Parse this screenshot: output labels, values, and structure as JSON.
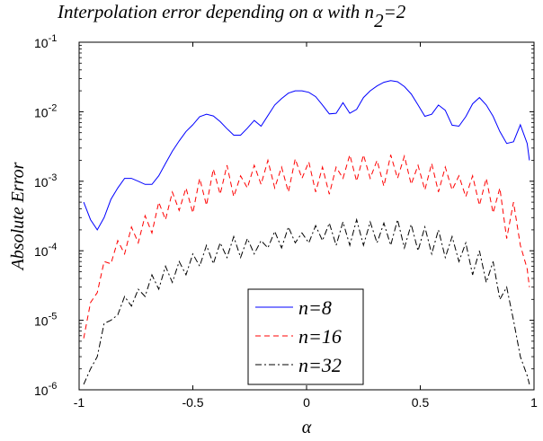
{
  "chart_data": {
    "type": "line",
    "title": "Interpolation error depending on α with n",
    "title_subscript": "2",
    "title_suffix": "=2",
    "xlabel": "α",
    "ylabel": "Absolute Error",
    "xlim": [
      -1,
      1
    ],
    "ylim": [
      1e-06,
      0.1
    ],
    "yscale": "log",
    "x_ticks": [
      -1,
      -0.5,
      0,
      0.5,
      1
    ],
    "x_tick_labels": [
      "-1",
      "-0.5",
      "0",
      "0.5",
      "1"
    ],
    "y_ticks": [
      1e-06,
      1e-05,
      0.0001,
      0.001,
      0.01,
      0.1
    ],
    "y_tick_labels": [
      {
        "base": "10",
        "exp": "-6"
      },
      {
        "base": "10",
        "exp": "-5"
      },
      {
        "base": "10",
        "exp": "-4"
      },
      {
        "base": "10",
        "exp": "-3"
      },
      {
        "base": "10",
        "exp": "-2"
      },
      {
        "base": "10",
        "exp": "-1"
      }
    ],
    "grid": false,
    "legend_position": "bottom-center",
    "series": [
      {
        "name": "n=8",
        "color": "#0000ff",
        "dash": "solid",
        "x": [
          -0.98,
          -0.95,
          -0.92,
          -0.89,
          -0.86,
          -0.83,
          -0.8,
          -0.77,
          -0.74,
          -0.71,
          -0.68,
          -0.65,
          -0.62,
          -0.59,
          -0.56,
          -0.53,
          -0.5,
          -0.47,
          -0.44,
          -0.41,
          -0.38,
          -0.35,
          -0.32,
          -0.29,
          -0.26,
          -0.23,
          -0.2,
          -0.17,
          -0.14,
          -0.11,
          -0.08,
          -0.05,
          -0.02,
          0.01,
          0.04,
          0.07,
          0.1,
          0.13,
          0.16,
          0.19,
          0.22,
          0.25,
          0.28,
          0.31,
          0.34,
          0.37,
          0.4,
          0.43,
          0.46,
          0.49,
          0.52,
          0.55,
          0.58,
          0.61,
          0.64,
          0.67,
          0.7,
          0.73,
          0.76,
          0.79,
          0.82,
          0.85,
          0.88,
          0.91,
          0.94,
          0.97,
          0.98
        ],
        "values": [
          0.0005,
          0.00028,
          0.0002,
          0.0003,
          0.00055,
          0.0008,
          0.0011,
          0.0011,
          0.001,
          0.0009,
          0.0009,
          0.0012,
          0.0018,
          0.0027,
          0.0038,
          0.0052,
          0.0065,
          0.0085,
          0.0092,
          0.0087,
          0.0072,
          0.0057,
          0.0046,
          0.0046,
          0.0058,
          0.0075,
          0.0062,
          0.0088,
          0.0125,
          0.0155,
          0.0185,
          0.02,
          0.02,
          0.019,
          0.0165,
          0.0125,
          0.0093,
          0.0095,
          0.0135,
          0.0095,
          0.0108,
          0.016,
          0.02,
          0.0235,
          0.0265,
          0.028,
          0.027,
          0.023,
          0.018,
          0.0125,
          0.0086,
          0.0092,
          0.0125,
          0.0105,
          0.0064,
          0.0062,
          0.0085,
          0.013,
          0.016,
          0.0125,
          0.0086,
          0.0052,
          0.0035,
          0.0037,
          0.0065,
          0.0035,
          0.002
        ]
      },
      {
        "name": "n=16",
        "color": "#ff0000",
        "dash": "dashed",
        "x": [
          -0.98,
          -0.95,
          -0.92,
          -0.89,
          -0.86,
          -0.83,
          -0.8,
          -0.77,
          -0.74,
          -0.71,
          -0.68,
          -0.65,
          -0.62,
          -0.59,
          -0.56,
          -0.53,
          -0.5,
          -0.47,
          -0.44,
          -0.41,
          -0.38,
          -0.35,
          -0.32,
          -0.29,
          -0.26,
          -0.23,
          -0.2,
          -0.17,
          -0.14,
          -0.11,
          -0.08,
          -0.05,
          -0.02,
          0.01,
          0.04,
          0.07,
          0.1,
          0.13,
          0.16,
          0.19,
          0.22,
          0.25,
          0.28,
          0.31,
          0.34,
          0.37,
          0.4,
          0.43,
          0.46,
          0.49,
          0.52,
          0.55,
          0.58,
          0.61,
          0.64,
          0.67,
          0.7,
          0.73,
          0.76,
          0.79,
          0.82,
          0.85,
          0.88,
          0.91,
          0.94,
          0.97,
          0.98
        ],
        "values": [
          5.5e-06,
          1.8e-05,
          2.5e-05,
          7e-05,
          6.5e-05,
          0.00014,
          9e-05,
          0.00022,
          0.00013,
          0.00032,
          0.00018,
          0.0005,
          0.00028,
          0.0007,
          0.00038,
          0.0008,
          0.00035,
          0.0011,
          0.00045,
          0.0015,
          0.00065,
          0.0017,
          0.0006,
          0.0012,
          0.0008,
          0.0017,
          0.0009,
          0.002,
          0.0008,
          0.0016,
          0.0007,
          0.0021,
          0.0011,
          0.0019,
          0.0007,
          0.0016,
          0.00065,
          0.0016,
          0.0011,
          0.0024,
          0.001,
          0.0024,
          0.0011,
          0.002,
          0.00085,
          0.0024,
          0.0011,
          0.0023,
          0.0009,
          0.0017,
          0.00075,
          0.0018,
          0.0007,
          0.0016,
          0.00075,
          0.0012,
          0.0006,
          0.0012,
          0.00045,
          0.0011,
          0.00035,
          0.0008,
          0.00015,
          0.0005,
          0.00012,
          5.5e-05,
          3e-05
        ]
      },
      {
        "name": "n=32",
        "color": "#000000",
        "dash": "dashdot",
        "x": [
          -0.98,
          -0.95,
          -0.92,
          -0.89,
          -0.86,
          -0.83,
          -0.8,
          -0.77,
          -0.74,
          -0.71,
          -0.68,
          -0.65,
          -0.62,
          -0.59,
          -0.56,
          -0.53,
          -0.5,
          -0.47,
          -0.44,
          -0.41,
          -0.38,
          -0.35,
          -0.32,
          -0.29,
          -0.26,
          -0.23,
          -0.2,
          -0.17,
          -0.14,
          -0.11,
          -0.08,
          -0.05,
          -0.02,
          0.01,
          0.04,
          0.07,
          0.1,
          0.13,
          0.16,
          0.19,
          0.22,
          0.25,
          0.28,
          0.31,
          0.34,
          0.37,
          0.4,
          0.43,
          0.46,
          0.49,
          0.52,
          0.55,
          0.58,
          0.61,
          0.64,
          0.67,
          0.7,
          0.73,
          0.76,
          0.79,
          0.82,
          0.85,
          0.88,
          0.91,
          0.94,
          0.97,
          0.98
        ],
        "values": [
          1.2e-06,
          2e-06,
          3e-06,
          9e-06,
          1e-05,
          1.2e-05,
          2.2e-05,
          1.6e-05,
          2.8e-05,
          2.2e-05,
          4.5e-05,
          2.8e-05,
          6e-05,
          3.5e-05,
          7e-05,
          4.5e-05,
          9e-05,
          6e-05,
          0.00012,
          6.5e-05,
          0.00013,
          8e-05,
          0.00016,
          8e-05,
          0.00015,
          9e-05,
          0.00014,
          0.00011,
          0.00019,
          0.00011,
          0.00022,
          0.00013,
          0.00018,
          0.00013,
          0.00023,
          0.00014,
          0.00025,
          0.00012,
          0.00026,
          0.00012,
          0.00028,
          0.00012,
          0.00026,
          0.00013,
          0.00025,
          0.00012,
          0.00028,
          0.00011,
          0.00024,
          0.0001,
          0.00022,
          9e-05,
          0.0002,
          8e-05,
          0.00016,
          7e-05,
          0.00013,
          4.5e-05,
          0.0001,
          3.5e-05,
          7e-05,
          2e-05,
          3e-05,
          1e-05,
          3e-06,
          1.6e-06,
          1.2e-06
        ]
      }
    ]
  }
}
